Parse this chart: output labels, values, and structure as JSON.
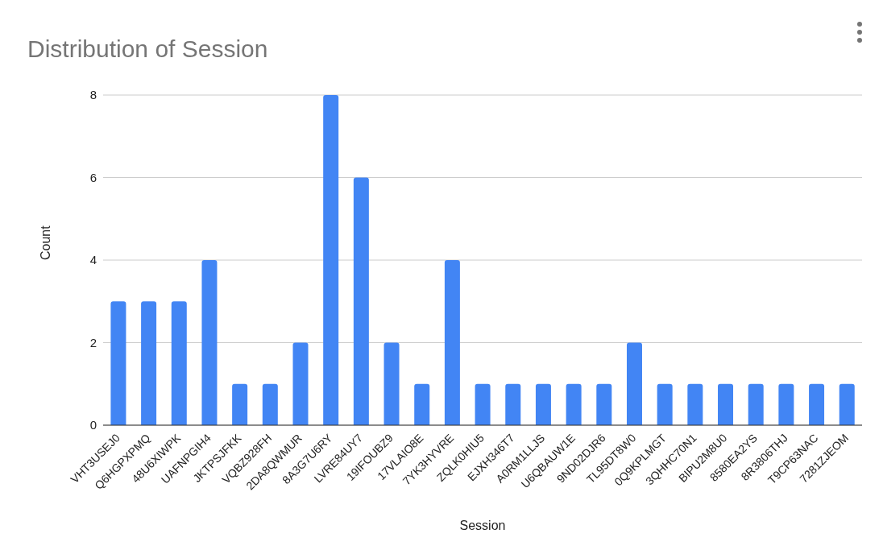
{
  "chart_data": {
    "type": "bar",
    "title": "Distribution of Session",
    "xlabel": "Session",
    "ylabel": "Count",
    "categories": [
      "VHT3USEJ0",
      "Q6HGPXPMQ",
      "48U6XIWPK",
      "UAFNPGIH4",
      "JKTPSJFKK",
      "VQBZ928FH",
      "2DA8QWMUR",
      "8A3G7U6RY",
      "LVRE84UY7",
      "19IFOUBZ9",
      "17VLAIO8E",
      "7YK3HYVRE",
      "ZQLK0HIU5",
      "EJXH346T7",
      "A0RM1LLJS",
      "U6QBAUW1E",
      "9ND02DJR6",
      "TL95DT8W0",
      "0Q9KPLMGT",
      "3QHHC70N1",
      "BIPU2M8U0",
      "8580EA2YS",
      "8R3806THJ",
      "T9CP63NAC",
      "7281ZJEOM"
    ],
    "values": [
      3,
      3,
      3,
      4,
      1,
      1,
      2,
      8,
      6,
      2,
      1,
      4,
      1,
      1,
      1,
      1,
      1,
      2,
      1,
      1,
      1,
      1,
      1,
      1,
      1
    ],
    "color": "#4285f4",
    "ylim": [
      0,
      8
    ],
    "yticks": [
      0,
      2,
      4,
      6,
      8
    ],
    "grid": "y",
    "legend": false
  }
}
